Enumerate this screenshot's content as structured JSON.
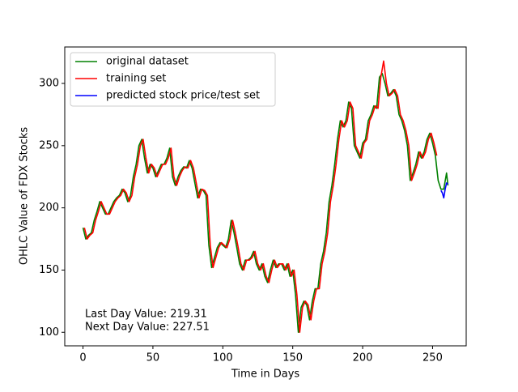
{
  "chart_data": {
    "type": "line",
    "xlabel": "Time in Days",
    "ylabel": "OHLC Value of FDX Stocks",
    "xlim": [
      -13.05,
      274.05
    ],
    "ylim": [
      89.1,
      329.3
    ],
    "xticks": [
      0,
      50,
      100,
      150,
      200,
      250
    ],
    "yticks": [
      100,
      150,
      200,
      250,
      300
    ],
    "legend": "upper left",
    "annotations": [
      "Last Day Value: 219.31",
      "Next Day Value: 227.51"
    ],
    "series": [
      {
        "name": "original dataset",
        "color": "#008000",
        "x": [
          0,
          2,
          4,
          6,
          8,
          10,
          12,
          14,
          16,
          18,
          20,
          22,
          24,
          26,
          28,
          30,
          32,
          34,
          36,
          38,
          40,
          42,
          44,
          46,
          48,
          50,
          52,
          54,
          56,
          58,
          60,
          62,
          64,
          66,
          68,
          70,
          72,
          74,
          76,
          78,
          80,
          82,
          84,
          86,
          88,
          90,
          92,
          94,
          96,
          98,
          100,
          102,
          104,
          106,
          108,
          110,
          112,
          114,
          116,
          118,
          120,
          122,
          124,
          126,
          128,
          130,
          132,
          134,
          136,
          138,
          140,
          142,
          144,
          146,
          148,
          150,
          152,
          154,
          156,
          158,
          160,
          162,
          164,
          166,
          168,
          170,
          172,
          174,
          176,
          178,
          180,
          182,
          184,
          186,
          188,
          190,
          192,
          194,
          196,
          198,
          200,
          202,
          204,
          206,
          208,
          210,
          212,
          214,
          216,
          218,
          220,
          222,
          224,
          226,
          228,
          230,
          232,
          234,
          236,
          238,
          240,
          242,
          244,
          246,
          248,
          250,
          252,
          254,
          256,
          258,
          260,
          261
        ],
        "values": [
          184,
          175,
          178,
          180,
          190,
          197,
          205,
          200,
          195,
          195,
          200,
          205,
          208,
          210,
          215,
          212,
          205,
          210,
          225,
          235,
          250,
          255,
          240,
          228,
          235,
          232,
          225,
          230,
          235,
          235,
          240,
          248,
          225,
          218,
          225,
          230,
          233,
          232,
          238,
          232,
          220,
          208,
          215,
          214,
          210,
          170,
          152,
          160,
          168,
          172,
          170,
          168,
          175,
          190,
          180,
          168,
          155,
          150,
          158,
          158,
          160,
          165,
          155,
          150,
          155,
          145,
          140,
          150,
          158,
          152,
          155,
          155,
          150,
          155,
          145,
          150,
          130,
          100,
          120,
          125,
          122,
          110,
          125,
          135,
          135,
          155,
          165,
          180,
          205,
          218,
          235,
          255,
          270,
          265,
          270,
          285,
          280,
          250,
          245,
          240,
          252,
          255,
          270,
          275,
          282,
          280,
          305,
          308,
          300,
          290,
          292,
          295,
          290,
          275,
          270,
          262,
          250,
          222,
          228,
          235,
          245,
          240,
          245,
          255,
          260,
          252,
          242,
          222,
          215,
          215,
          228,
          218
        ]
      },
      {
        "name": "training set",
        "color": "#ff0000",
        "x": [
          1,
          3,
          5,
          7,
          9,
          11,
          13,
          15,
          17,
          19,
          21,
          23,
          25,
          27,
          29,
          31,
          33,
          35,
          37,
          39,
          41,
          43,
          45,
          47,
          49,
          51,
          53,
          55,
          57,
          59,
          61,
          63,
          65,
          67,
          69,
          71,
          73,
          75,
          77,
          79,
          81,
          83,
          85,
          87,
          89,
          91,
          93,
          95,
          97,
          99,
          101,
          103,
          105,
          107,
          109,
          111,
          113,
          115,
          117,
          119,
          121,
          123,
          125,
          127,
          129,
          131,
          133,
          135,
          137,
          139,
          141,
          143,
          145,
          147,
          149,
          151,
          153,
          155,
          157,
          159,
          161,
          163,
          165,
          167,
          169,
          171,
          173,
          175,
          177,
          179,
          181,
          183,
          185,
          187,
          189,
          191,
          193,
          195,
          197,
          199,
          201,
          203,
          205,
          207,
          209,
          211,
          213,
          215,
          217,
          219,
          221,
          223,
          225,
          227,
          229,
          231,
          233,
          235,
          237,
          239,
          241,
          243,
          245,
          247,
          249,
          251,
          253
        ],
        "values": [
          184,
          175,
          178,
          180,
          190,
          197,
          205,
          200,
          195,
          195,
          200,
          205,
          208,
          210,
          215,
          212,
          205,
          210,
          225,
          235,
          250,
          255,
          240,
          228,
          235,
          232,
          225,
          230,
          235,
          235,
          240,
          248,
          225,
          218,
          225,
          230,
          233,
          232,
          238,
          232,
          220,
          208,
          215,
          214,
          210,
          170,
          152,
          160,
          168,
          172,
          170,
          168,
          175,
          190,
          180,
          168,
          155,
          150,
          158,
          158,
          160,
          165,
          155,
          150,
          155,
          145,
          140,
          150,
          158,
          152,
          155,
          155,
          150,
          155,
          145,
          150,
          130,
          100,
          120,
          125,
          122,
          110,
          125,
          135,
          135,
          155,
          165,
          180,
          205,
          218,
          235,
          255,
          270,
          265,
          270,
          285,
          280,
          250,
          245,
          240,
          252,
          255,
          270,
          275,
          282,
          280,
          305,
          318,
          300,
          290,
          292,
          295,
          290,
          275,
          270,
          262,
          250,
          222,
          228,
          235,
          245,
          240,
          245,
          255,
          260,
          252,
          242
        ]
      },
      {
        "name": "predicted stock price/test set",
        "color": "#0000ff",
        "x": [
          256,
          257,
          258,
          259,
          260,
          261
        ],
        "values": [
          214,
          212,
          208,
          215,
          220,
          219
        ]
      }
    ]
  }
}
